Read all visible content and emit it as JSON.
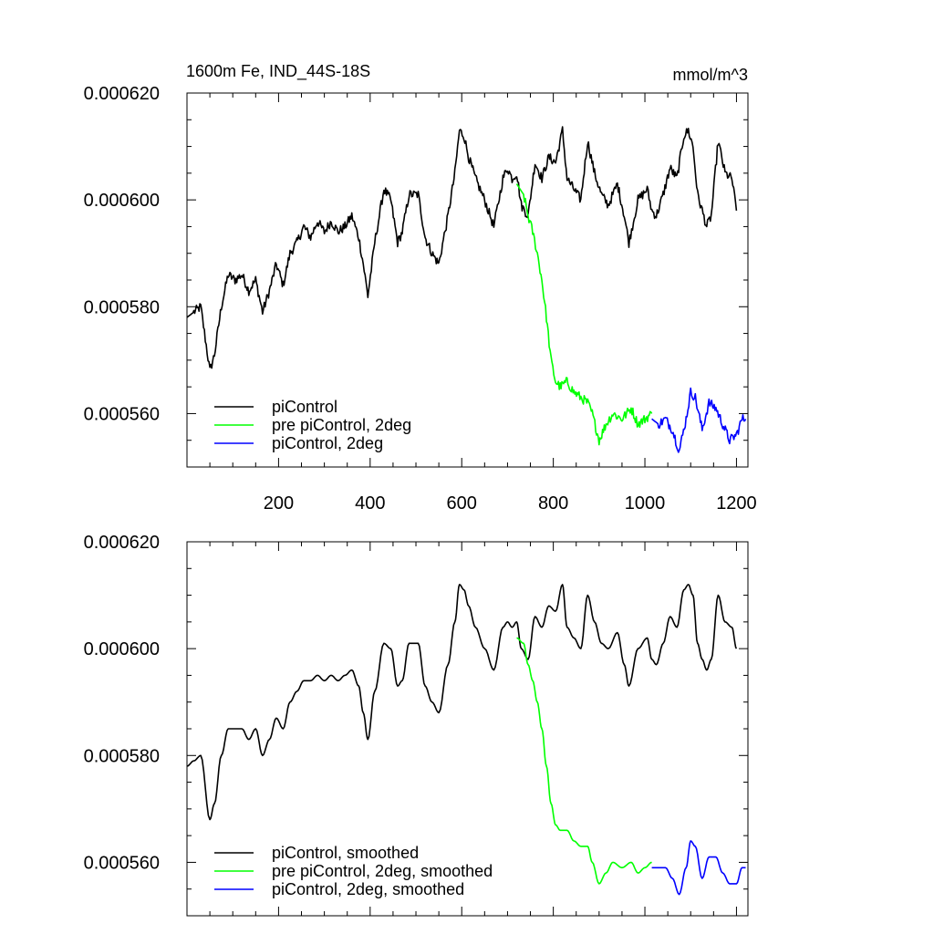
{
  "chart_data": [
    {
      "type": "line",
      "title": "1600m Fe, IND_44S-18S",
      "units": "mmol/m^3",
      "xlabel": "",
      "ylabel": "",
      "xlim": [
        0,
        1225
      ],
      "ylim": [
        0.00055,
        0.00062
      ],
      "xticks": [
        200,
        400,
        600,
        800,
        1000,
        1200
      ],
      "xtick_labels": [
        "200",
        "400",
        "600",
        "800",
        "1000",
        "1200"
      ],
      "yticks": [
        0.00056,
        0.00058,
        0.0006,
        0.00062
      ],
      "ytick_labels": [
        "0.000560",
        "0.000580",
        "0.000600",
        "0.000620"
      ],
      "legend_position": "bottom-left",
      "smoothed": false,
      "series": [
        {
          "name": "piControl",
          "color": "#000000",
          "x": [
            0,
            15,
            30,
            50,
            60,
            75,
            90,
            105,
            120,
            135,
            150,
            165,
            180,
            195,
            210,
            225,
            240,
            255,
            270,
            285,
            300,
            315,
            330,
            345,
            360,
            375,
            385,
            395,
            410,
            430,
            445,
            460,
            470,
            485,
            505,
            520,
            535,
            550,
            570,
            585,
            595,
            605,
            615,
            630,
            650,
            670,
            690,
            700,
            710,
            720,
            730,
            745,
            760,
            775,
            790,
            805,
            820,
            830,
            845,
            860,
            875,
            890,
            905,
            920,
            940,
            955,
            965,
            985,
            1005,
            1015,
            1025,
            1040,
            1055,
            1070,
            1085,
            1095,
            1105,
            1115,
            1125,
            1135,
            1145,
            1160,
            1175,
            1190,
            1200
          ],
          "y": [
            0.000578,
            0.000579,
            0.00058,
            0.000568,
            0.000571,
            0.00058,
            0.000586,
            0.000585,
            0.000586,
            0.000583,
            0.000585,
            0.000579,
            0.000583,
            0.000588,
            0.000584,
            0.00059,
            0.000592,
            0.000595,
            0.000593,
            0.000596,
            0.000594,
            0.000596,
            0.000594,
            0.000595,
            0.000597,
            0.000593,
            0.000588,
            0.000582,
            0.000592,
            0.000602,
            0.0006,
            0.000592,
            0.000594,
            0.000601,
            0.000601,
            0.000593,
            0.00059,
            0.000588,
            0.000597,
            0.000605,
            0.000613,
            0.000612,
            0.000608,
            0.000604,
            0.0006,
            0.000595,
            0.000604,
            0.000606,
            0.000604,
            0.000605,
            0.000599,
            0.000597,
            0.000607,
            0.000604,
            0.000608,
            0.000607,
            0.000613,
            0.000604,
            0.000602,
            0.0006,
            0.000611,
            0.000605,
            0.000601,
            0.000599,
            0.000603,
            0.000597,
            0.000592,
            0.0006,
            0.000602,
            0.000598,
            0.000597,
            0.000601,
            0.000606,
            0.000604,
            0.000612,
            0.000613,
            0.00061,
            0.000601,
            0.000598,
            0.000595,
            0.000597,
            0.000611,
            0.000605,
            0.000604,
            0.000598
          ]
        },
        {
          "name": "pre piControl, 2deg",
          "color": "#00ff00",
          "x": [
            720,
            735,
            745,
            755,
            765,
            775,
            785,
            795,
            805,
            815,
            830,
            845,
            860,
            875,
            885,
            900,
            915,
            930,
            950,
            970,
            985,
            1000,
            1015
          ],
          "y": [
            0.000603,
            0.000601,
            0.000597,
            0.000594,
            0.00059,
            0.000585,
            0.000578,
            0.00057,
            0.000566,
            0.000565,
            0.000566,
            0.000564,
            0.000563,
            0.000562,
            0.00056,
            0.000555,
            0.000558,
            0.00056,
            0.000559,
            0.000561,
            0.000558,
            0.000559,
            0.00056
          ]
        },
        {
          "name": "piControl, 2deg",
          "color": "#0000ff",
          "x": [
            1015,
            1030,
            1045,
            1060,
            1075,
            1090,
            1100,
            1110,
            1125,
            1140,
            1155,
            1170,
            1185,
            1200,
            1212,
            1220
          ],
          "y": [
            0.000559,
            0.000558,
            0.000559,
            0.000557,
            0.000553,
            0.000559,
            0.000564,
            0.000563,
            0.000557,
            0.000562,
            0.000561,
            0.000558,
            0.000555,
            0.000556,
            0.000559,
            0.000559
          ]
        }
      ]
    },
    {
      "type": "line",
      "title": "",
      "units": "",
      "xlabel": "",
      "ylabel": "",
      "xlim": [
        0,
        1225
      ],
      "ylim": [
        0.00055,
        0.00062
      ],
      "xticks": [
        200,
        400,
        600,
        800,
        1000,
        1200
      ],
      "xtick_labels": [],
      "yticks": [
        0.00056,
        0.00058,
        0.0006,
        0.00062
      ],
      "ytick_labels": [
        "0.000560",
        "0.000580",
        "0.000600",
        "0.000620"
      ],
      "legend_position": "bottom-left",
      "smoothed": true,
      "series": [
        {
          "name": "piControl, smoothed",
          "color": "#000000",
          "x": [
            0,
            15,
            30,
            50,
            60,
            75,
            90,
            105,
            120,
            135,
            150,
            165,
            180,
            195,
            210,
            225,
            240,
            255,
            270,
            285,
            300,
            315,
            330,
            345,
            360,
            375,
            385,
            395,
            410,
            430,
            445,
            460,
            470,
            485,
            505,
            520,
            535,
            550,
            570,
            585,
            595,
            605,
            615,
            630,
            650,
            670,
            690,
            700,
            710,
            720,
            730,
            745,
            760,
            775,
            790,
            805,
            820,
            830,
            845,
            860,
            875,
            890,
            905,
            920,
            940,
            955,
            965,
            985,
            1005,
            1015,
            1025,
            1040,
            1055,
            1070,
            1085,
            1095,
            1105,
            1115,
            1125,
            1135,
            1145,
            1160,
            1175,
            1190,
            1200
          ],
          "y": [
            0.000578,
            0.000579,
            0.00058,
            0.000568,
            0.000571,
            0.00058,
            0.000585,
            0.000585,
            0.000585,
            0.000583,
            0.000585,
            0.00058,
            0.000583,
            0.000587,
            0.000585,
            0.00059,
            0.000592,
            0.000594,
            0.000594,
            0.000595,
            0.000594,
            0.000595,
            0.000594,
            0.000595,
            0.000596,
            0.000593,
            0.000588,
            0.000583,
            0.000592,
            0.000601,
            0.0006,
            0.000593,
            0.000594,
            0.000601,
            0.000601,
            0.000593,
            0.00059,
            0.000588,
            0.000597,
            0.000605,
            0.000612,
            0.000611,
            0.000608,
            0.000604,
            0.0006,
            0.000596,
            0.000604,
            0.000605,
            0.000604,
            0.000605,
            0.0006,
            0.000598,
            0.000606,
            0.000604,
            0.000608,
            0.000607,
            0.000612,
            0.000604,
            0.000602,
            0.0006,
            0.00061,
            0.000605,
            0.000601,
            0.0006,
            0.000603,
            0.000597,
            0.000593,
            0.0006,
            0.000602,
            0.000598,
            0.000597,
            0.000601,
            0.000606,
            0.000604,
            0.000611,
            0.000612,
            0.00061,
            0.000601,
            0.000598,
            0.000596,
            0.000598,
            0.00061,
            0.000605,
            0.000604,
            0.0006
          ]
        },
        {
          "name": "pre piControl, 2deg, smoothed",
          "color": "#00ff00",
          "x": [
            720,
            735,
            745,
            755,
            765,
            775,
            785,
            795,
            805,
            815,
            830,
            845,
            860,
            875,
            885,
            900,
            915,
            930,
            950,
            970,
            985,
            1000,
            1015
          ],
          "y": [
            0.000602,
            0.000601,
            0.000597,
            0.000594,
            0.00059,
            0.000585,
            0.000578,
            0.000571,
            0.000567,
            0.000566,
            0.000566,
            0.000564,
            0.000563,
            0.000563,
            0.00056,
            0.000556,
            0.000558,
            0.00056,
            0.000559,
            0.00056,
            0.000558,
            0.000559,
            0.00056
          ]
        },
        {
          "name": "piControl, 2deg, smoothed",
          "color": "#0000ff",
          "x": [
            1015,
            1030,
            1045,
            1060,
            1075,
            1090,
            1100,
            1110,
            1125,
            1140,
            1155,
            1170,
            1185,
            1200,
            1212,
            1220
          ],
          "y": [
            0.000559,
            0.000559,
            0.000559,
            0.000557,
            0.000554,
            0.000559,
            0.000564,
            0.000563,
            0.000557,
            0.000561,
            0.000561,
            0.000558,
            0.000556,
            0.000556,
            0.000559,
            0.000559
          ]
        }
      ]
    }
  ]
}
